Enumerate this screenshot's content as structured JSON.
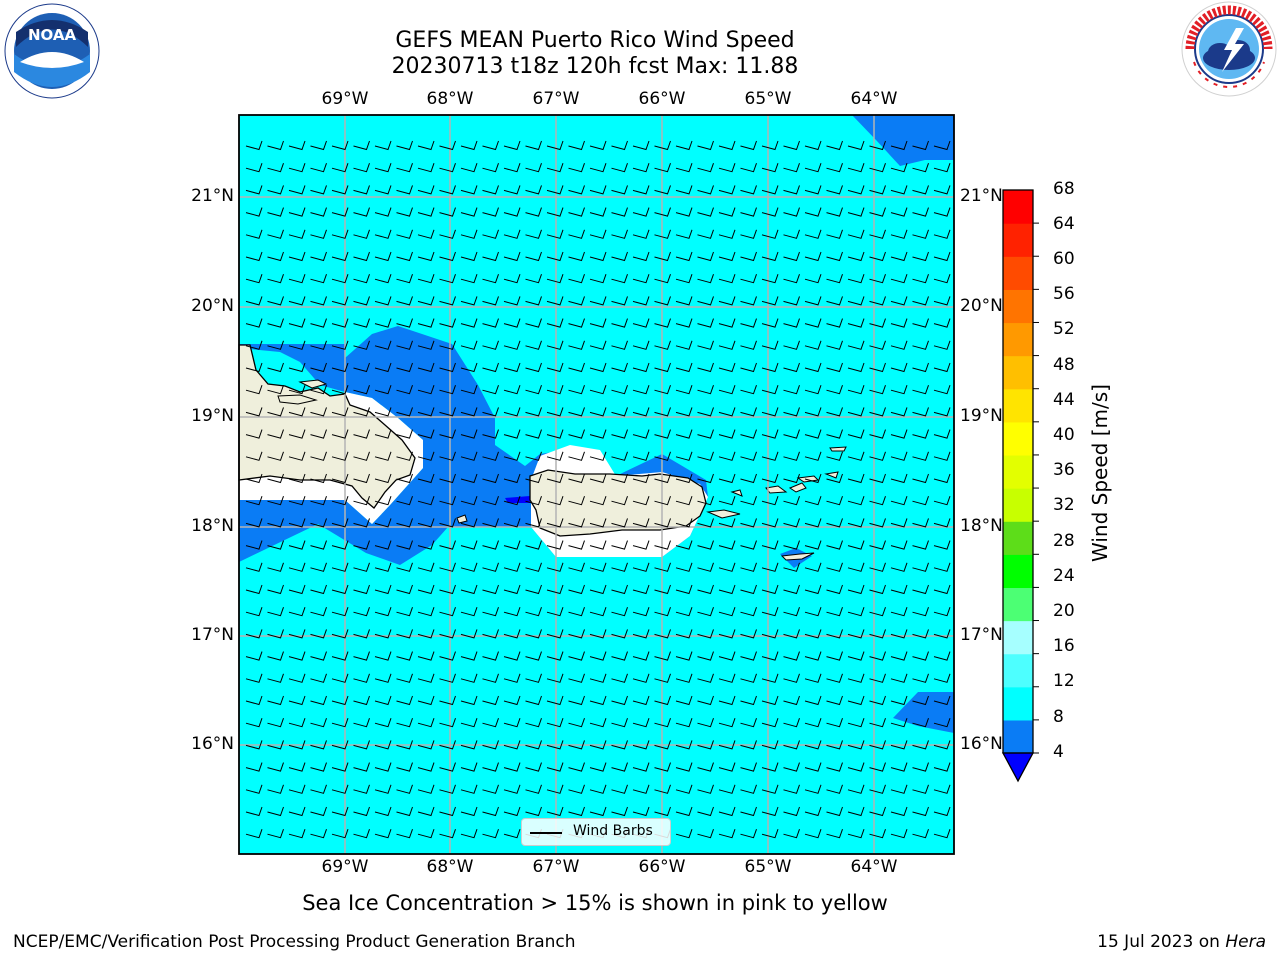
{
  "title": {
    "line1": "GEFS MEAN Puerto Rico Wind Speed",
    "line2": "20230713 t18z 120h fcst   Max: 11.88"
  },
  "logos": {
    "noaa": {
      "text": "NOAA",
      "ring_text": "NATIONAL OCEANIC AND ATMOSPHERIC ADMINISTRATION · U.S. DEPARTMENT OF COMMERCE"
    },
    "nws": {
      "ring_text": "NATIONAL WEATHER SERVICE"
    }
  },
  "map": {
    "lon_ticks": [
      "69°W",
      "68°W",
      "67°W",
      "66°W",
      "65°W",
      "64°W"
    ],
    "lat_ticks": [
      "21°N",
      "20°N",
      "19°N",
      "18°N",
      "17°N",
      "16°N"
    ],
    "lon_values": [
      -69,
      -68,
      -67,
      -66,
      -65,
      -64
    ],
    "lat_values": [
      21,
      20,
      19,
      18,
      17,
      16
    ],
    "lon_range": [
      -70,
      -63.25
    ],
    "lat_range": [
      15.05,
      21.75
    ],
    "grid": true,
    "colors": {
      "ocean": "#00ffff",
      "calm_blue": "#0a7cf5",
      "land": "#efefdc",
      "mask": "#ffffff"
    },
    "legend": {
      "label": "Wind Barbs"
    },
    "wind": {
      "direction": "east",
      "barb_speed_kt": 15
    }
  },
  "colorbar": {
    "label": "Wind Speed [m/s]",
    "ticks": [
      "4",
      "8",
      "12",
      "16",
      "20",
      "24",
      "28",
      "32",
      "36",
      "40",
      "44",
      "48",
      "52",
      "56",
      "60",
      "64",
      "68"
    ],
    "tick_values": [
      4,
      8,
      12,
      16,
      20,
      24,
      28,
      32,
      36,
      40,
      44,
      48,
      52,
      56,
      60,
      64,
      68
    ],
    "colors": [
      "#0a7cf5",
      "#00ffff",
      "#4dffff",
      "#a6ffff",
      "#4cff74",
      "#00ff00",
      "#5ddd19",
      "#c8ff00",
      "#e3ff00",
      "#ffff00",
      "#ffe400",
      "#ffbf00",
      "#ff9900",
      "#ff7400",
      "#ff4b00",
      "#ff2200",
      "#ff0000"
    ],
    "under_color": "#0000ff"
  },
  "caption": "Sea Ice Concentration > 15% is shown in pink to yellow",
  "footer": {
    "left": "NCEP/EMC/Verification Post Processing Product Generation Branch",
    "right_prefix": "15 Jul 2023 on ",
    "right_host": "Hera"
  }
}
